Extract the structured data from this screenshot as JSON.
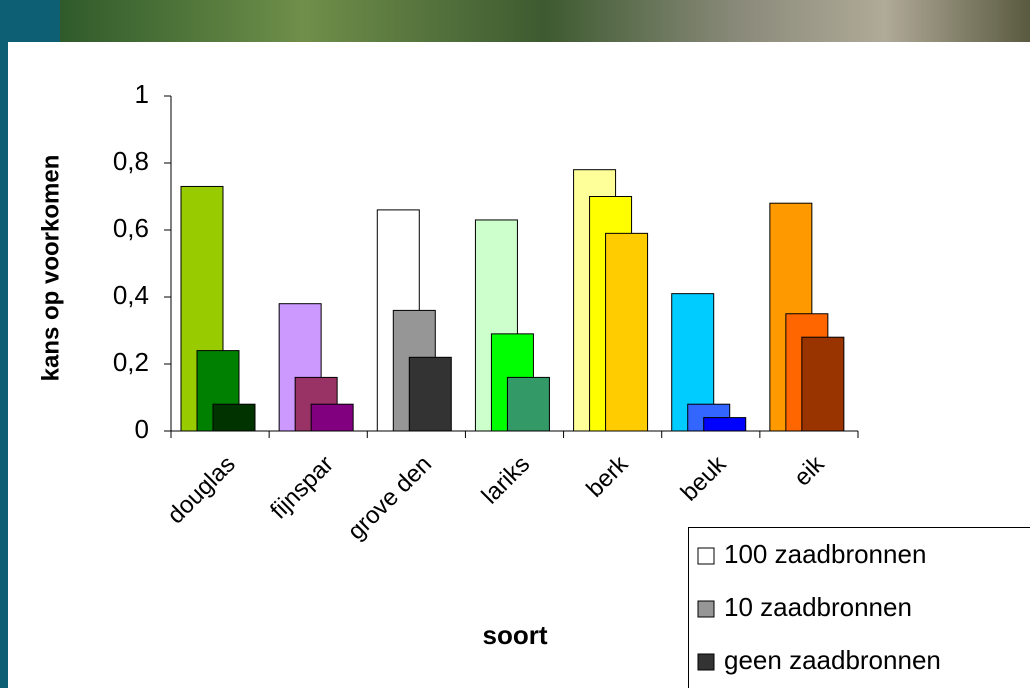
{
  "chart_data": {
    "type": "bar",
    "x_label": "soort",
    "y_label": "kans op voorkomen",
    "categories": [
      "douglas",
      "fijnspar",
      "grove den",
      "lariks",
      "berk",
      "beuk",
      "eik"
    ],
    "series": [
      {
        "name": "100 zaadbronnen",
        "color": "#ffffff",
        "values": [
          0.73,
          0.38,
          0.66,
          0.63,
          0.78,
          0.41,
          0.68
        ],
        "colors": [
          "#99cc00",
          "#cc99ff",
          "#ffffff",
          "#ccffcc",
          "#ffff99",
          "#00ccff",
          "#ff9900"
        ]
      },
      {
        "name": "10 zaadbronnen",
        "color": "#969696",
        "values": [
          0.24,
          0.16,
          0.36,
          0.29,
          0.7,
          0.08,
          0.35
        ],
        "colors": [
          "#008000",
          "#993366",
          "#969696",
          "#00ff00",
          "#ffff00",
          "#3366ff",
          "#ff6600"
        ]
      },
      {
        "name": "geen zaadbronnen",
        "color": "#333333",
        "values": [
          0.08,
          0.08,
          0.22,
          0.16,
          0.59,
          0.04,
          0.28
        ],
        "colors": [
          "#003300",
          "#800080",
          "#333333",
          "#339966",
          "#ffcc00",
          "#0000ff",
          "#993300"
        ]
      }
    ],
    "ylim": [
      0,
      1
    ],
    "yticks": [
      0,
      {
        "value": 0.2,
        "label": "0,2"
      },
      {
        "value": 0.4,
        "label": "0,4"
      },
      {
        "value": 0.6,
        "label": "0,6"
      },
      {
        "value": 0.8,
        "label": "0,8"
      },
      1
    ],
    "legend": "bottom-right"
  }
}
